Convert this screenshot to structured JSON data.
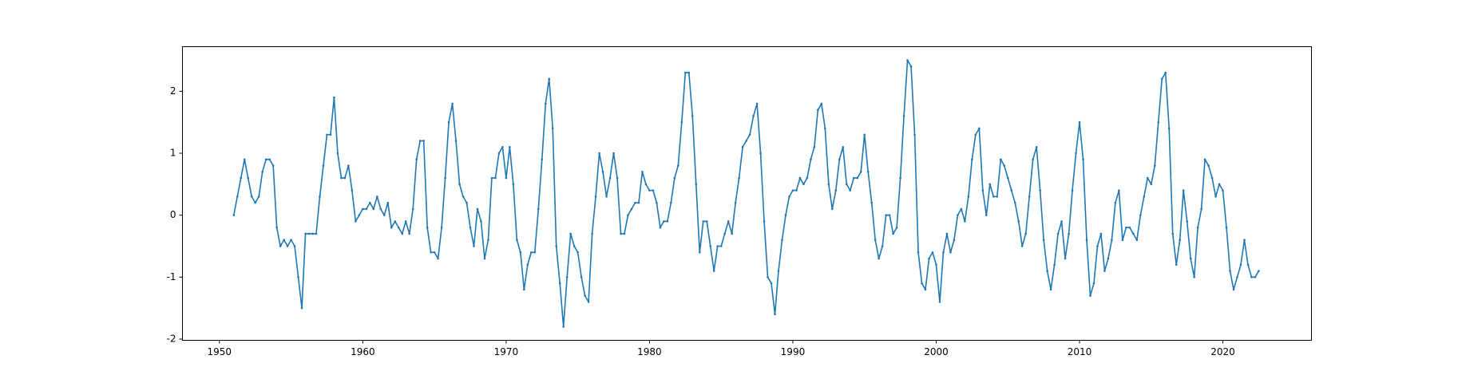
{
  "chart_data": {
    "type": "line",
    "x": [
      1951,
      1951.25,
      1951.5,
      1951.75,
      1952,
      1952.25,
      1952.5,
      1952.75,
      1953,
      1953.25,
      1953.5,
      1953.75,
      1954,
      1954.25,
      1954.5,
      1954.75,
      1955,
      1955.25,
      1955.5,
      1955.75,
      1956,
      1956.25,
      1956.5,
      1956.75,
      1957,
      1957.25,
      1957.5,
      1957.75,
      1958,
      1958.25,
      1958.5,
      1958.75,
      1959,
      1959.25,
      1959.5,
      1959.75,
      1960,
      1960.25,
      1960.5,
      1960.75,
      1961,
      1961.25,
      1961.5,
      1961.75,
      1962,
      1962.25,
      1962.5,
      1962.75,
      1963,
      1963.25,
      1963.5,
      1963.75,
      1964,
      1964.25,
      1964.5,
      1964.75,
      1965,
      1965.25,
      1965.5,
      1965.75,
      1966,
      1966.25,
      1966.5,
      1966.75,
      1967,
      1967.25,
      1967.5,
      1967.75,
      1968,
      1968.25,
      1968.5,
      1968.75,
      1969,
      1969.25,
      1969.5,
      1969.75,
      1970,
      1970.25,
      1970.5,
      1970.75,
      1971,
      1971.25,
      1971.5,
      1971.75,
      1972,
      1972.25,
      1972.5,
      1972.75,
      1973,
      1973.25,
      1973.5,
      1973.75,
      1974,
      1974.25,
      1974.5,
      1974.75,
      1975,
      1975.25,
      1975.5,
      1975.75,
      1976,
      1976.25,
      1976.5,
      1976.75,
      1977,
      1977.25,
      1977.5,
      1977.75,
      1978,
      1978.25,
      1978.5,
      1978.75,
      1979,
      1979.25,
      1979.5,
      1979.75,
      1980,
      1980.25,
      1980.5,
      1980.75,
      1981,
      1981.25,
      1981.5,
      1981.75,
      1982,
      1982.25,
      1982.5,
      1982.75,
      1983,
      1983.25,
      1983.5,
      1983.75,
      1984,
      1984.25,
      1984.5,
      1984.75,
      1985,
      1985.25,
      1985.5,
      1985.75,
      1986,
      1986.25,
      1986.5,
      1986.75,
      1987,
      1987.25,
      1987.5,
      1987.75,
      1988,
      1988.25,
      1988.5,
      1988.75,
      1989,
      1989.25,
      1989.5,
      1989.75,
      1990,
      1990.25,
      1990.5,
      1990.75,
      1991,
      1991.25,
      1991.5,
      1991.75,
      1992,
      1992.25,
      1992.5,
      1992.75,
      1993,
      1993.25,
      1993.5,
      1993.75,
      1994,
      1994.25,
      1994.5,
      1994.75,
      1995,
      1995.25,
      1995.5,
      1995.75,
      1996,
      1996.25,
      1996.5,
      1996.75,
      1997,
      1997.25,
      1997.5,
      1997.75,
      1998,
      1998.25,
      1998.5,
      1998.75,
      1999,
      1999.25,
      1999.5,
      1999.75,
      2000,
      2000.25,
      2000.5,
      2000.75,
      2001,
      2001.25,
      2001.5,
      2001.75,
      2002,
      2002.25,
      2002.5,
      2002.75,
      2003,
      2003.25,
      2003.5,
      2003.75,
      2004,
      2004.25,
      2004.5,
      2004.75,
      2005,
      2005.25,
      2005.5,
      2005.75,
      2006,
      2006.25,
      2006.5,
      2006.75,
      2007,
      2007.25,
      2007.5,
      2007.75,
      2008,
      2008.25,
      2008.5,
      2008.75,
      2009,
      2009.25,
      2009.5,
      2009.75,
      2010,
      2010.25,
      2010.5,
      2010.75,
      2011,
      2011.25,
      2011.5,
      2011.75,
      2012,
      2012.25,
      2012.5,
      2012.75,
      2013,
      2013.25,
      2013.5,
      2013.75,
      2014,
      2014.25,
      2014.5,
      2014.75,
      2015,
      2015.25,
      2015.5,
      2015.75,
      2016,
      2016.25,
      2016.5,
      2016.75,
      2017,
      2017.25,
      2017.5,
      2017.75,
      2018,
      2018.25,
      2018.5,
      2018.75,
      2019,
      2019.25,
      2019.5,
      2019.75,
      2020,
      2020.25,
      2020.5,
      2020.75,
      2021,
      2021.25,
      2021.5,
      2021.75,
      2022,
      2022.25,
      2022.5
    ],
    "series": [
      {
        "color": "#1f77b4",
        "values": [
          0.0,
          0.3,
          0.6,
          0.9,
          0.6,
          0.3,
          0.2,
          0.3,
          0.7,
          0.9,
          0.9,
          0.8,
          -0.2,
          -0.5,
          -0.4,
          -0.5,
          -0.4,
          -0.5,
          -1.0,
          -1.5,
          -0.3,
          -0.3,
          -0.3,
          -0.3,
          0.3,
          0.8,
          1.3,
          1.3,
          1.9,
          1.0,
          0.6,
          0.6,
          0.8,
          0.4,
          -0.1,
          0.0,
          0.1,
          0.1,
          0.2,
          0.1,
          0.3,
          0.1,
          0.0,
          0.2,
          -0.2,
          -0.1,
          -0.2,
          -0.3,
          -0.1,
          -0.3,
          0.1,
          0.9,
          1.2,
          1.2,
          -0.2,
          -0.6,
          -0.6,
          -0.7,
          -0.2,
          0.6,
          1.5,
          1.8,
          1.2,
          0.5,
          0.3,
          0.2,
          -0.2,
          -0.5,
          0.1,
          -0.1,
          -0.7,
          -0.4,
          0.6,
          0.6,
          1.0,
          1.1,
          0.6,
          1.1,
          0.5,
          -0.4,
          -0.6,
          -1.2,
          -0.8,
          -0.6,
          -0.6,
          0.1,
          0.9,
          1.8,
          2.2,
          1.4,
          -0.5,
          -1.1,
          -1.8,
          -1.0,
          -0.3,
          -0.5,
          -0.6,
          -1.0,
          -1.3,
          -1.4,
          -0.3,
          0.3,
          1.0,
          0.7,
          0.3,
          0.6,
          1.0,
          0.6,
          -0.3,
          -0.3,
          0.0,
          0.1,
          0.2,
          0.2,
          0.7,
          0.5,
          0.4,
          0.4,
          0.2,
          -0.2,
          -0.1,
          -0.1,
          0.2,
          0.6,
          0.8,
          1.5,
          2.3,
          2.3,
          1.6,
          0.5,
          -0.6,
          -0.1,
          -0.1,
          -0.5,
          -0.9,
          -0.5,
          -0.5,
          -0.3,
          -0.1,
          -0.3,
          0.2,
          0.6,
          1.1,
          1.2,
          1.3,
          1.6,
          1.8,
          1.0,
          -0.1,
          -1.0,
          -1.1,
          -1.6,
          -0.9,
          -0.4,
          0.0,
          0.3,
          0.4,
          0.4,
          0.6,
          0.5,
          0.6,
          0.9,
          1.1,
          1.7,
          1.8,
          1.4,
          0.5,
          0.1,
          0.4,
          0.9,
          1.1,
          0.5,
          0.4,
          0.6,
          0.6,
          0.7,
          1.3,
          0.7,
          0.2,
          -0.4,
          -0.7,
          -0.5,
          0.0,
          0.0,
          -0.3,
          -0.2,
          0.6,
          1.6,
          2.5,
          2.4,
          1.3,
          -0.6,
          -1.1,
          -1.2,
          -0.7,
          -0.6,
          -0.8,
          -1.4,
          -0.6,
          -0.3,
          -0.6,
          -0.4,
          0.0,
          0.1,
          -0.1,
          0.3,
          0.9,
          1.3,
          1.4,
          0.4,
          0.0,
          0.5,
          0.3,
          0.3,
          0.9,
          0.8,
          0.6,
          0.4,
          0.2,
          -0.1,
          -0.5,
          -0.3,
          0.3,
          0.9,
          1.1,
          0.4,
          -0.4,
          -0.9,
          -1.2,
          -0.8,
          -0.3,
          -0.1,
          -0.7,
          -0.3,
          0.4,
          1.0,
          1.5,
          0.9,
          -0.4,
          -1.3,
          -1.1,
          -0.5,
          -0.3,
          -0.9,
          -0.7,
          -0.4,
          0.2,
          0.4,
          -0.4,
          -0.2,
          -0.2,
          -0.3,
          -0.4,
          0.0,
          0.3,
          0.6,
          0.5,
          0.8,
          1.5,
          2.2,
          2.3,
          1.4,
          -0.3,
          -0.8,
          -0.4,
          0.4,
          -0.1,
          -0.7,
          -1.0,
          -0.2,
          0.1,
          0.9,
          0.8,
          0.6,
          0.3,
          0.5,
          0.4,
          -0.2,
          -0.9,
          -1.2,
          -1.0,
          -0.8,
          -0.4,
          -0.8,
          -1.0,
          -1.0,
          -0.9
        ]
      }
    ],
    "xlim": [
      1947.42,
      2026.18
    ],
    "ylim": [
      -2.02,
      2.72
    ],
    "xticks": [
      1950,
      1960,
      1970,
      1980,
      1990,
      2000,
      2010,
      2020
    ],
    "yticks": [
      -2,
      -1,
      0,
      1,
      2
    ]
  }
}
